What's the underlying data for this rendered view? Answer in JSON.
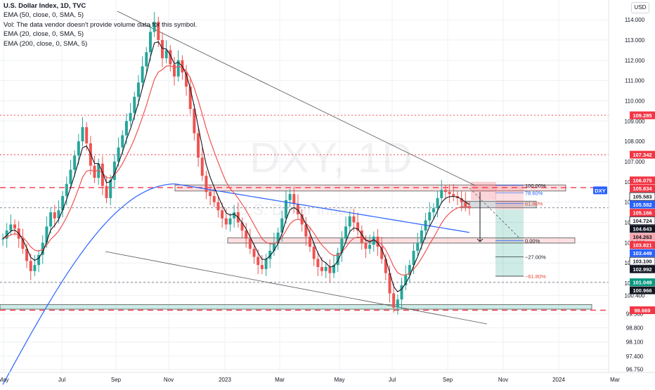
{
  "legend": {
    "title": "U.S. Dollar Index, 1D, TVC",
    "ema50": "EMA (50, close, 0, SMA, 5)",
    "vol": "Vol: The data vendor doesn't provide volume data for this symbol.",
    "ema20": "EMA (20, close, 0, SMA, 5)",
    "ema200": "EMA (200, close, 0, SMA, 5)"
  },
  "currency_button": "USD",
  "watermark": {
    "ticker": "DXY, 1D",
    "name": "U.S. Dollar Index"
  },
  "colors": {
    "up": "#26a69a",
    "down": "#ef5350",
    "ema50": "#ef5350",
    "ema20": "#131722",
    "ema200": "#2962ff",
    "level": "#f23645",
    "dotted": "#787b86",
    "box_red": "rgba(242,54,69,0.16)",
    "box_grey": "rgba(120,123,134,0.28)",
    "box_teal": "rgba(8,153,129,0.2)",
    "grid": "#eef0f3"
  },
  "chart_data": {
    "type": "candlestick",
    "symbol": "DXY",
    "timeframe": "1D",
    "x_ticks": [
      "May",
      "Jul",
      "Sep",
      "Nov",
      "2023",
      "Mar",
      "May",
      "Jul",
      "Sep",
      "Nov",
      "2024",
      "Mar"
    ],
    "y_ticks": [
      "114.000",
      "113.000",
      "112.000",
      "111.000",
      "110.000",
      "109.000",
      "108.000",
      "107.000",
      "106.000",
      "105.000",
      "104.000",
      "103.000",
      "102.000",
      "101.000",
      "100.400",
      "99.500",
      "98.800",
      "98.100",
      "97.400",
      "96.750"
    ],
    "ylim": [
      96.6,
      114.8
    ],
    "price_labels": [
      {
        "text": "109.285",
        "value": 109.285,
        "style": "red"
      },
      {
        "text": "107.342",
        "value": 107.342,
        "style": "red"
      },
      {
        "text": "106.075",
        "value": 106.075,
        "style": "red"
      },
      {
        "text": "105.834",
        "value": 105.834,
        "style": "red"
      },
      {
        "text": "105.583",
        "value": 105.583,
        "style": "outline"
      },
      {
        "text": "DXY",
        "value": 105.582,
        "style": "blue"
      },
      {
        "text": "105.582",
        "value": 105.582,
        "style": "blue"
      },
      {
        "text": "105.166",
        "value": 105.166,
        "style": "red"
      },
      {
        "text": "104.724",
        "value": 104.724,
        "style": "outline"
      },
      {
        "text": "104.643",
        "value": 104.643,
        "style": "black"
      },
      {
        "text": "104.263",
        "value": 104.263,
        "style": "pink"
      },
      {
        "text": "103.821",
        "value": 103.821,
        "style": "red"
      },
      {
        "text": "103.449",
        "value": 103.449,
        "style": "blue"
      },
      {
        "text": "103.100",
        "value": 103.1,
        "style": "outline"
      },
      {
        "text": "102.992",
        "value": 102.992,
        "style": "black"
      },
      {
        "text": "101.049",
        "value": 101.049,
        "style": "teal"
      },
      {
        "text": "100.966",
        "value": 100.966,
        "style": "black"
      },
      {
        "text": "99.669",
        "value": 99.669,
        "style": "red"
      }
    ],
    "fib_levels": [
      {
        "label": "100.00%",
        "value": 105.83
      },
      {
        "label": "78.60%",
        "value": 105.45
      },
      {
        "label": "61.80%",
        "value": 104.93
      },
      {
        "label": "0.00%",
        "value": 103.1
      },
      {
        "label": "−27.00%",
        "value": 102.3
      },
      {
        "label": "−61.80%",
        "value": 101.35
      }
    ],
    "horizontal_levels": [
      109.285,
      107.342,
      105.75,
      104.724,
      101.049,
      99.669
    ],
    "ohlc": [
      {
        "c": 103.2
      },
      {
        "c": 103.6
      },
      {
        "c": 103.9
      },
      {
        "c": 103.7
      },
      {
        "c": 103.2
      },
      {
        "c": 102.7
      },
      {
        "c": 102.1
      },
      {
        "c": 101.6
      },
      {
        "c": 101.9
      },
      {
        "c": 102.4
      },
      {
        "c": 103.0
      },
      {
        "c": 103.8
      },
      {
        "c": 104.5
      },
      {
        "c": 104.2
      },
      {
        "c": 104.6
      },
      {
        "c": 105.3
      },
      {
        "c": 105.9
      },
      {
        "c": 106.6
      },
      {
        "c": 107.3
      },
      {
        "c": 108.0
      },
      {
        "c": 108.7
      },
      {
        "c": 107.9
      },
      {
        "c": 106.8
      },
      {
        "c": 106.2
      },
      {
        "c": 106.9
      },
      {
        "c": 105.8
      },
      {
        "c": 105.2
      },
      {
        "c": 106.1
      },
      {
        "c": 107.0
      },
      {
        "c": 107.7
      },
      {
        "c": 108.3
      },
      {
        "c": 109.0
      },
      {
        "c": 109.4
      },
      {
        "c": 110.2
      },
      {
        "c": 110.9
      },
      {
        "c": 111.7
      },
      {
        "c": 112.4
      },
      {
        "c": 113.4
      },
      {
        "c": 113.9
      },
      {
        "c": 113.0
      },
      {
        "c": 112.1
      },
      {
        "c": 112.5
      },
      {
        "c": 111.8
      },
      {
        "c": 111.2
      },
      {
        "c": 112.0
      },
      {
        "c": 111.4
      },
      {
        "c": 110.7
      },
      {
        "c": 109.6
      },
      {
        "c": 108.4
      },
      {
        "c": 107.2
      },
      {
        "c": 106.3
      },
      {
        "c": 105.5
      },
      {
        "c": 105.3
      },
      {
        "c": 105.0
      },
      {
        "c": 104.6
      },
      {
        "c": 104.2
      },
      {
        "c": 103.9
      },
      {
        "c": 104.2
      },
      {
        "c": 104.5
      },
      {
        "c": 104.0
      },
      {
        "c": 103.6
      },
      {
        "c": 103.2
      },
      {
        "c": 102.7
      },
      {
        "c": 102.3
      },
      {
        "c": 101.9
      },
      {
        "c": 101.7
      },
      {
        "c": 102.2
      },
      {
        "c": 102.6
      },
      {
        "c": 103.0
      },
      {
        "c": 103.5
      },
      {
        "c": 104.2
      },
      {
        "c": 105.1
      },
      {
        "c": 105.4
      },
      {
        "c": 104.9
      },
      {
        "c": 104.4
      },
      {
        "c": 103.9
      },
      {
        "c": 103.3
      },
      {
        "c": 102.8
      },
      {
        "c": 102.2
      },
      {
        "c": 101.8
      },
      {
        "c": 101.6
      },
      {
        "c": 101.8
      },
      {
        "c": 101.5
      },
      {
        "c": 101.9
      },
      {
        "c": 102.5
      },
      {
        "c": 103.2
      },
      {
        "c": 103.8
      },
      {
        "c": 104.3
      },
      {
        "c": 104.0
      },
      {
        "c": 103.6
      },
      {
        "c": 103.0
      },
      {
        "c": 102.7
      },
      {
        "c": 102.9
      },
      {
        "c": 103.3
      },
      {
        "c": 102.8
      },
      {
        "c": 102.2
      },
      {
        "c": 101.5
      },
      {
        "c": 100.5
      },
      {
        "c": 99.8
      },
      {
        "c": 100.2
      },
      {
        "c": 100.9
      },
      {
        "c": 101.4
      },
      {
        "c": 101.9
      },
      {
        "c": 102.6
      },
      {
        "c": 103.0
      },
      {
        "c": 103.6
      },
      {
        "c": 104.1
      },
      {
        "c": 104.5
      },
      {
        "c": 104.7
      },
      {
        "c": 105.2
      },
      {
        "c": 105.6
      },
      {
        "c": 105.5
      },
      {
        "c": 105.4
      },
      {
        "c": 105.3
      },
      {
        "c": 105.2
      },
      {
        "c": 105.0
      },
      {
        "c": 104.8
      },
      {
        "c": 104.7
      }
    ],
    "indicators": [
      "EMA 20",
      "EMA 50",
      "EMA 200"
    ],
    "grid": true
  }
}
